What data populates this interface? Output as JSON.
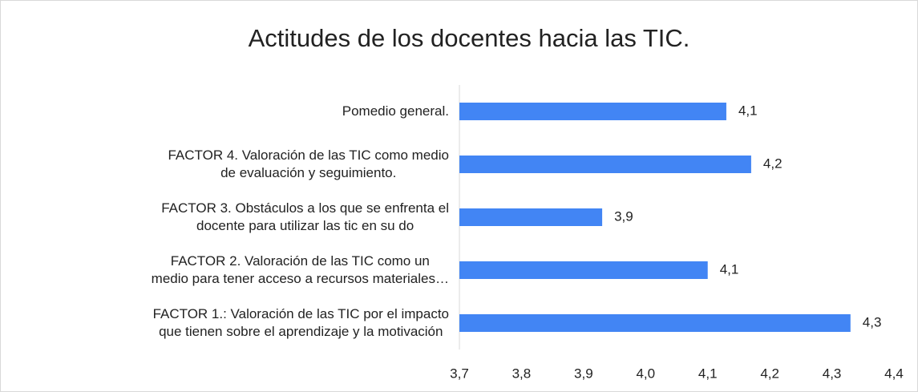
{
  "chart_data": {
    "type": "bar",
    "orientation": "horizontal",
    "title": "Actitudes de los docentes hacia las TIC.",
    "categories": [
      "Pomedio general.",
      "FACTOR 4. Valoración de las TIC como medio\nde evaluación y seguimiento.",
      "FACTOR 3. Obstáculos a los que se enfrenta el\ndocente para utilizar las tic en su do",
      "FACTOR 2. Valoración de las TIC como un\nmedio para tener acceso a recursos materiales…",
      "FACTOR 1.: Valoración de las TIC por el impacto\nque tienen sobre el aprendizaje y la motivación"
    ],
    "values": [
      4.13,
      4.17,
      3.93,
      4.1,
      4.33
    ],
    "value_labels": [
      "4,1",
      "4,2",
      "3,9",
      "4,1",
      "4,3"
    ],
    "color": "#4285f4",
    "xlim": [
      3.7,
      4.4
    ],
    "xticks": [
      {
        "value": 3.7,
        "label": "3,7"
      },
      {
        "value": 3.8,
        "label": "3,8"
      },
      {
        "value": 3.9,
        "label": "3,9"
      },
      {
        "value": 4.0,
        "label": "4,0"
      },
      {
        "value": 4.1,
        "label": "4,1"
      },
      {
        "value": 4.2,
        "label": "4,2"
      },
      {
        "value": 4.3,
        "label": "4,3"
      },
      {
        "value": 4.4,
        "label": "4,4"
      }
    ],
    "grid": false
  }
}
